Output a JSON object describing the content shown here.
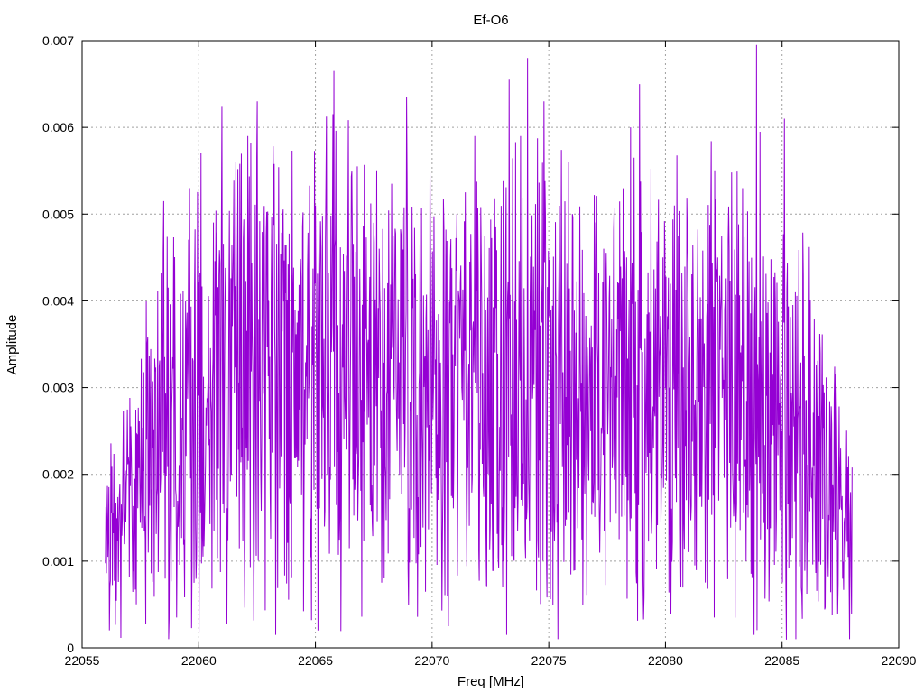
{
  "chart_data": {
    "type": "line",
    "title": "Ef-O6",
    "xlabel": "Freq [MHz]",
    "ylabel": "Amplitude",
    "xlim": [
      22055,
      22090
    ],
    "ylim": [
      0,
      0.007
    ],
    "xticks": [
      22055,
      22060,
      22065,
      22070,
      22075,
      22080,
      22085,
      22090
    ],
    "xtick_labels": [
      "22055",
      "22060",
      "22065",
      "22070",
      "22075",
      "22080",
      "22085",
      "22090"
    ],
    "yticks": [
      0,
      0.001,
      0.002,
      0.003,
      0.004,
      0.005,
      0.006,
      0.007
    ],
    "ytick_labels": [
      "0",
      "0.001",
      "0.002",
      "0.003",
      "0.004",
      "0.005",
      "0.006",
      "0.007"
    ],
    "grid": true,
    "series": [
      {
        "color": "#9400d3",
        "x_range": [
          22056,
          22088
        ],
        "envelope": {
          "x": [
            22056,
            22057,
            22058,
            22059,
            22060,
            22062,
            22064,
            22066,
            22068,
            22070,
            22072,
            22074,
            22076,
            22078,
            22080,
            22082,
            22084,
            22086,
            22087,
            22088
          ],
          "mean": [
            0.0012,
            0.0017,
            0.0022,
            0.0027,
            0.003,
            0.0032,
            0.0032,
            0.0031,
            0.003,
            0.0029,
            0.003,
            0.0031,
            0.003,
            0.003,
            0.0029,
            0.0029,
            0.0029,
            0.0024,
            0.0019,
            0.0012
          ]
        },
        "peaks": [
          {
            "x": 22058.5,
            "y": 0.00515
          },
          {
            "x": 22059.6,
            "y": 0.0053
          },
          {
            "x": 22060.1,
            "y": 0.0057
          },
          {
            "x": 22061.6,
            "y": 0.0056
          },
          {
            "x": 22062.1,
            "y": 0.0059
          },
          {
            "x": 22062.5,
            "y": 0.0063
          },
          {
            "x": 22065.0,
            "y": 0.0051
          },
          {
            "x": 22065.8,
            "y": 0.00665
          },
          {
            "x": 22066.8,
            "y": 0.00555
          },
          {
            "x": 22068.9,
            "y": 0.00635
          },
          {
            "x": 22073.3,
            "y": 0.00655
          },
          {
            "x": 22073.8,
            "y": 0.0059
          },
          {
            "x": 22074.1,
            "y": 0.0068
          },
          {
            "x": 22074.8,
            "y": 0.0063
          },
          {
            "x": 22078.5,
            "y": 0.006
          },
          {
            "x": 22078.9,
            "y": 0.0065
          },
          {
            "x": 22083.3,
            "y": 0.0053
          },
          {
            "x": 22083.9,
            "y": 0.00695
          },
          {
            "x": 22085.1,
            "y": 0.0061
          }
        ],
        "troughs": [
          {
            "x": 22058.7,
            "y": 0.0001
          },
          {
            "x": 22061.2,
            "y": 0.00027
          },
          {
            "x": 22065.1,
            "y": 0.0002
          },
          {
            "x": 22070.7,
            "y": 0.00025
          },
          {
            "x": 22073.2,
            "y": 0.00015
          },
          {
            "x": 22075.4,
            "y": 0.0001
          },
          {
            "x": 22083.8,
            "y": 0.00015
          },
          {
            "x": 22085.6,
            "y": 0.0001
          },
          {
            "x": 22087.9,
            "y": 0.0001
          }
        ]
      }
    ]
  }
}
